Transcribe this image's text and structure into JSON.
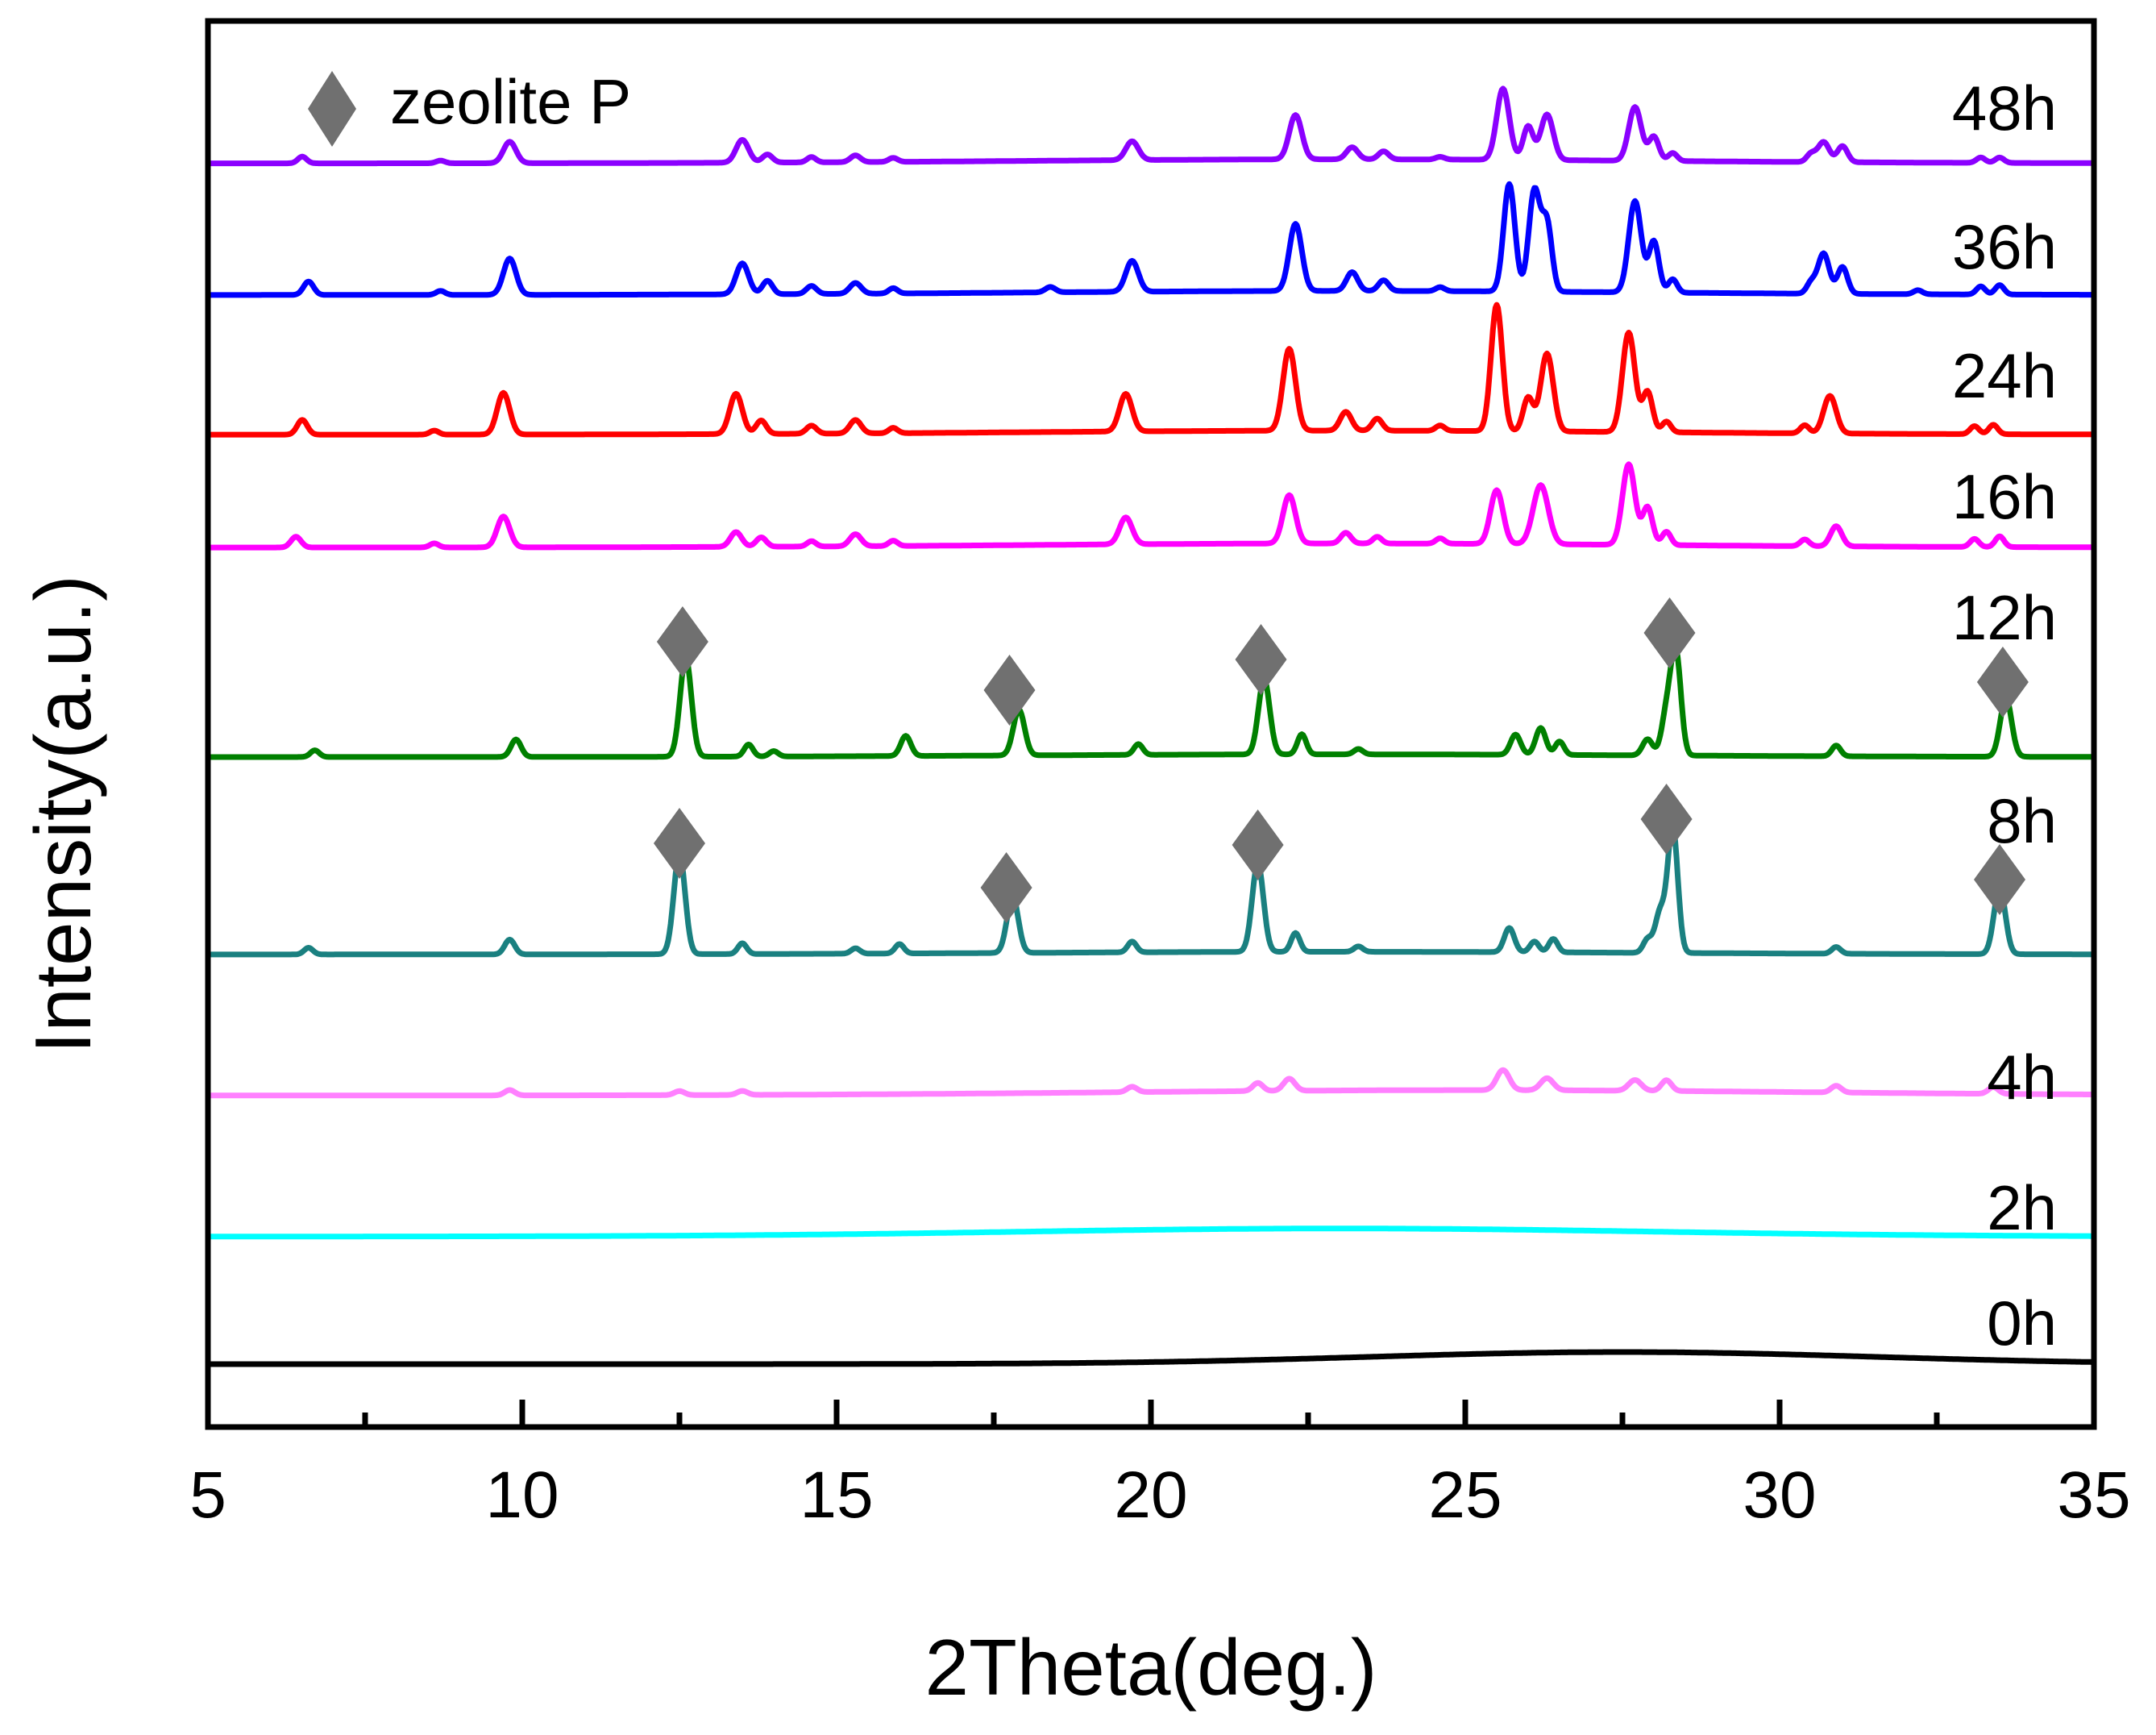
{
  "chart_data": {
    "type": "line",
    "title": "",
    "xlabel": "2Theta(deg.)",
    "ylabel": "Intensity(a.u.)",
    "xlim": [
      5,
      35
    ],
    "xticks": [
      5,
      10,
      15,
      20,
      25,
      30,
      35
    ],
    "xtick_labels": [
      "5",
      "10",
      "15",
      "20",
      "25",
      "30",
      "35"
    ],
    "y_ticks_shown": false,
    "legend": {
      "entries": [
        {
          "marker": "diamond",
          "label": "zeolite P",
          "color": "#707070"
        }
      ],
      "placement": "top-left"
    },
    "marker_color": "#707070",
    "zeolite_P_peaks": [
      12.5,
      17.7,
      21.7,
      28.2,
      33.5
    ],
    "series": [
      {
        "name": "0h",
        "color": "#000000",
        "offset": 0,
        "bump": {
          "center": 27.5,
          "width": 4.0,
          "height": 0.9
        },
        "peaks": []
      },
      {
        "name": "2h",
        "color": "#00ffff",
        "offset": 9.5,
        "bump": {
          "center": 23.0,
          "width": 5.0,
          "height": 0.6
        },
        "peaks": []
      },
      {
        "name": "4h",
        "color": "#ff80ff",
        "offset": 20.0,
        "bump": {
          "center": 25.0,
          "width": 5.5,
          "height": 0.4
        },
        "peaks": [
          [
            9.8,
            0.4,
            0.08
          ],
          [
            12.5,
            0.3,
            0.08
          ],
          [
            13.5,
            0.3,
            0.08
          ],
          [
            19.7,
            0.4,
            0.08
          ],
          [
            21.7,
            0.6,
            0.08
          ],
          [
            22.2,
            0.9,
            0.09
          ],
          [
            25.6,
            1.5,
            0.1
          ],
          [
            26.3,
            0.9,
            0.1
          ],
          [
            27.7,
            0.8,
            0.1
          ],
          [
            28.2,
            0.8,
            0.08
          ],
          [
            30.9,
            0.5,
            0.08
          ],
          [
            33.4,
            0.5,
            0.08
          ]
        ]
      },
      {
        "name": "8h",
        "color": "#1a8080",
        "offset": 30.5,
        "bump": {
          "center": 23.0,
          "width": 5.0,
          "height": 0.2
        },
        "peaks": [
          [
            6.6,
            0.5,
            0.07
          ],
          [
            9.8,
            1.1,
            0.08
          ],
          [
            12.5,
            7.5,
            0.09
          ],
          [
            13.5,
            0.8,
            0.07
          ],
          [
            15.3,
            0.4,
            0.07
          ],
          [
            16.0,
            0.7,
            0.07
          ],
          [
            17.8,
            4.2,
            0.09
          ],
          [
            19.7,
            0.8,
            0.07
          ],
          [
            21.7,
            6.6,
            0.09
          ],
          [
            22.3,
            1.4,
            0.07
          ],
          [
            23.3,
            0.4,
            0.07
          ],
          [
            25.7,
            1.8,
            0.08
          ],
          [
            26.1,
            0.8,
            0.07
          ],
          [
            26.4,
            1.0,
            0.07
          ],
          [
            27.9,
            1.0,
            0.07
          ],
          [
            28.1,
            3.0,
            0.08
          ],
          [
            28.3,
            9.4,
            0.08
          ],
          [
            30.9,
            0.5,
            0.07
          ],
          [
            33.5,
            5.0,
            0.09
          ]
        ]
      },
      {
        "name": "12h",
        "color": "#008000",
        "offset": 45.2,
        "bump": {
          "center": 23.0,
          "width": 5.0,
          "height": 0.2
        },
        "peaks": [
          [
            6.7,
            0.5,
            0.07
          ],
          [
            9.9,
            1.3,
            0.08
          ],
          [
            12.6,
            7.4,
            0.09
          ],
          [
            13.6,
            0.9,
            0.07
          ],
          [
            14.0,
            0.4,
            0.07
          ],
          [
            16.1,
            1.5,
            0.08
          ],
          [
            17.9,
            3.4,
            0.09
          ],
          [
            19.8,
            0.8,
            0.07
          ],
          [
            21.8,
            5.6,
            0.09
          ],
          [
            22.4,
            1.5,
            0.07
          ],
          [
            23.3,
            0.4,
            0.07
          ],
          [
            25.8,
            1.5,
            0.08
          ],
          [
            26.2,
            2.0,
            0.08
          ],
          [
            26.5,
            1.0,
            0.07
          ],
          [
            27.9,
            1.2,
            0.08
          ],
          [
            28.2,
            3.0,
            0.08
          ],
          [
            28.35,
            7.6,
            0.08
          ],
          [
            30.9,
            0.8,
            0.07
          ],
          [
            33.6,
            4.4,
            0.09
          ]
        ]
      },
      {
        "name": "16h",
        "color": "#ff00ff",
        "offset": 60.8,
        "bump": {
          "center": 23.0,
          "width": 5.0,
          "height": 0.3
        },
        "peaks": [
          [
            6.4,
            0.8,
            0.08
          ],
          [
            8.6,
            0.3,
            0.07
          ],
          [
            9.7,
            2.3,
            0.1
          ],
          [
            13.4,
            1.1,
            0.09
          ],
          [
            13.8,
            0.7,
            0.08
          ],
          [
            14.6,
            0.4,
            0.07
          ],
          [
            15.3,
            0.9,
            0.09
          ],
          [
            15.9,
            0.4,
            0.07
          ],
          [
            19.6,
            2.0,
            0.1
          ],
          [
            22.2,
            3.6,
            0.1
          ],
          [
            23.1,
            0.8,
            0.08
          ],
          [
            23.6,
            0.5,
            0.07
          ],
          [
            24.6,
            0.4,
            0.07
          ],
          [
            25.5,
            4.0,
            0.1
          ],
          [
            26.2,
            4.4,
            0.12
          ],
          [
            27.6,
            6.0,
            0.1
          ],
          [
            27.9,
            2.8,
            0.08
          ],
          [
            28.2,
            1.0,
            0.07
          ],
          [
            30.4,
            0.5,
            0.07
          ],
          [
            30.9,
            1.5,
            0.09
          ],
          [
            33.1,
            0.6,
            0.07
          ],
          [
            33.5,
            0.8,
            0.07
          ]
        ]
      },
      {
        "name": "24h",
        "color": "#ff0000",
        "offset": 69.2,
        "bump": {
          "center": 23.0,
          "width": 5.0,
          "height": 0.3
        },
        "peaks": [
          [
            6.5,
            1.1,
            0.08
          ],
          [
            8.6,
            0.3,
            0.07
          ],
          [
            9.7,
            3.1,
            0.1
          ],
          [
            13.4,
            3.0,
            0.1
          ],
          [
            13.8,
            1.0,
            0.08
          ],
          [
            14.6,
            0.6,
            0.08
          ],
          [
            15.3,
            1.0,
            0.09
          ],
          [
            15.9,
            0.4,
            0.07
          ],
          [
            19.6,
            2.8,
            0.1
          ],
          [
            22.2,
            6.1,
            0.1
          ],
          [
            23.1,
            1.4,
            0.09
          ],
          [
            23.6,
            0.9,
            0.08
          ],
          [
            24.6,
            0.4,
            0.07
          ],
          [
            25.5,
            9.4,
            0.09
          ],
          [
            26.0,
            2.5,
            0.08
          ],
          [
            26.3,
            5.8,
            0.1
          ],
          [
            27.6,
            7.4,
            0.1
          ],
          [
            27.9,
            3.0,
            0.08
          ],
          [
            28.2,
            0.8,
            0.07
          ],
          [
            30.4,
            0.6,
            0.07
          ],
          [
            30.8,
            2.8,
            0.1
          ],
          [
            33.1,
            0.6,
            0.07
          ],
          [
            33.4,
            0.7,
            0.07
          ]
        ]
      },
      {
        "name": "36h",
        "color": "#0000ff",
        "offset": 79.6,
        "bump": {
          "center": 23.0,
          "width": 5.0,
          "height": 0.3
        },
        "peaks": [
          [
            6.6,
            1.0,
            0.08
          ],
          [
            8.7,
            0.3,
            0.07
          ],
          [
            9.8,
            2.7,
            0.1
          ],
          [
            13.5,
            2.3,
            0.1
          ],
          [
            13.9,
            1.0,
            0.08
          ],
          [
            14.6,
            0.6,
            0.08
          ],
          [
            15.3,
            0.8,
            0.09
          ],
          [
            15.9,
            0.4,
            0.07
          ],
          [
            18.4,
            0.4,
            0.08
          ],
          [
            19.7,
            2.3,
            0.1
          ],
          [
            22.3,
            5.0,
            0.1
          ],
          [
            23.2,
            1.4,
            0.09
          ],
          [
            23.7,
            0.8,
            0.08
          ],
          [
            24.6,
            0.3,
            0.07
          ],
          [
            25.7,
            8.0,
            0.09
          ],
          [
            26.1,
            7.5,
            0.09
          ],
          [
            26.3,
            5.0,
            0.08
          ],
          [
            27.7,
            6.8,
            0.1
          ],
          [
            28.0,
            3.8,
            0.08
          ],
          [
            28.3,
            1.0,
            0.07
          ],
          [
            30.5,
            0.8,
            0.07
          ],
          [
            30.7,
            3.0,
            0.09
          ],
          [
            31.0,
            2.0,
            0.08
          ],
          [
            32.2,
            0.3,
            0.07
          ],
          [
            33.2,
            0.6,
            0.07
          ],
          [
            33.5,
            0.7,
            0.07
          ]
        ]
      },
      {
        "name": "48h",
        "color": "#8b00ff",
        "offset": 89.4,
        "bump": {
          "center": 23.0,
          "width": 5.0,
          "height": 0.3
        },
        "peaks": [
          [
            6.5,
            0.5,
            0.07
          ],
          [
            8.7,
            0.2,
            0.07
          ],
          [
            9.8,
            1.6,
            0.1
          ],
          [
            13.5,
            1.7,
            0.1
          ],
          [
            13.9,
            0.6,
            0.08
          ],
          [
            14.6,
            0.4,
            0.07
          ],
          [
            15.3,
            0.5,
            0.08
          ],
          [
            15.9,
            0.3,
            0.07
          ],
          [
            19.7,
            1.4,
            0.1
          ],
          [
            22.3,
            3.3,
            0.1
          ],
          [
            23.2,
            0.9,
            0.09
          ],
          [
            23.7,
            0.6,
            0.08
          ],
          [
            24.6,
            0.2,
            0.07
          ],
          [
            25.6,
            5.3,
            0.1
          ],
          [
            26.0,
            2.5,
            0.08
          ],
          [
            26.3,
            3.4,
            0.1
          ],
          [
            27.7,
            4.0,
            0.1
          ],
          [
            28.0,
            1.8,
            0.08
          ],
          [
            28.3,
            0.6,
            0.07
          ],
          [
            30.5,
            0.6,
            0.07
          ],
          [
            30.7,
            1.5,
            0.09
          ],
          [
            31.0,
            1.2,
            0.08
          ],
          [
            33.2,
            0.4,
            0.07
          ],
          [
            33.5,
            0.4,
            0.07
          ]
        ]
      }
    ]
  }
}
